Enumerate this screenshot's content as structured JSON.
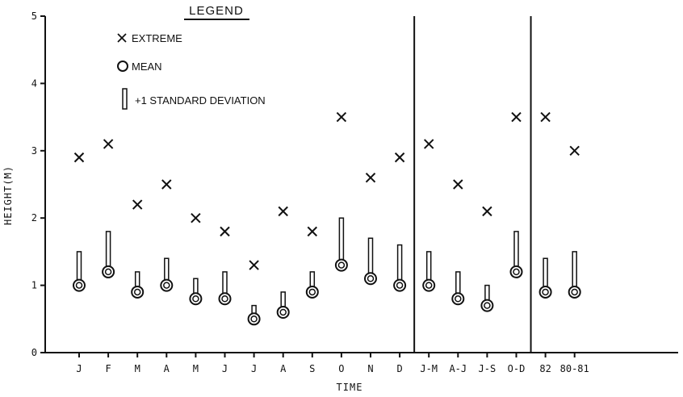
{
  "chart_data": {
    "type": "scatter",
    "title": "",
    "xlabel": "TIME",
    "ylabel": "HEIGHT(M)",
    "ylim": [
      0,
      5
    ],
    "yticks": [
      0,
      1,
      2,
      3,
      4,
      5
    ],
    "grid": false,
    "legend_placement": "top-center",
    "legend": {
      "title": "LEGEND",
      "entries": [
        {
          "symbol": "x-marker",
          "label": "EXTREME"
        },
        {
          "symbol": "circle-marker",
          "label": "MEAN"
        },
        {
          "symbol": "bar-marker",
          "label": "+1 STANDARD DEVIATION"
        }
      ]
    },
    "categories": [
      "J",
      "F",
      "M",
      "A",
      "M",
      "J",
      "J",
      "A",
      "S",
      "O",
      "N",
      "D",
      "J-M",
      "A-J",
      "J-S",
      "O-D",
      "82",
      "80-81"
    ],
    "separators_after_index": [
      11,
      15
    ],
    "series": [
      {
        "name": "EXTREME",
        "values": [
          2.9,
          3.1,
          2.2,
          2.5,
          2.0,
          1.8,
          1.3,
          2.1,
          1.8,
          3.5,
          2.6,
          2.9,
          3.1,
          2.5,
          2.1,
          3.5,
          3.5,
          3.0
        ]
      },
      {
        "name": "MEAN",
        "values": [
          1.0,
          1.2,
          0.9,
          1.0,
          0.8,
          0.8,
          0.5,
          0.6,
          0.9,
          1.3,
          1.1,
          1.0,
          1.0,
          0.8,
          0.7,
          1.2,
          0.9,
          0.9
        ]
      },
      {
        "name": "+1 STANDARD DEVIATION",
        "values": [
          1.5,
          1.8,
          1.2,
          1.4,
          1.1,
          1.2,
          0.7,
          0.9,
          1.2,
          2.0,
          1.7,
          1.6,
          1.5,
          1.2,
          1.0,
          1.8,
          1.4,
          1.5
        ]
      }
    ]
  }
}
